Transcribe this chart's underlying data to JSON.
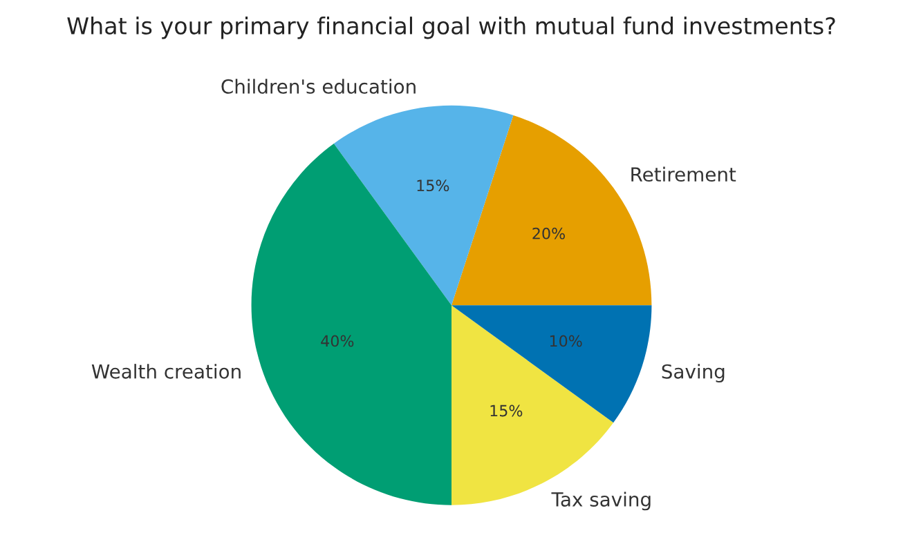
{
  "chart_data": {
    "type": "pie",
    "title": "What is your primary financial goal with mutual fund investments?",
    "categories": [
      "Retirement",
      "Children's education",
      "Wealth creation",
      "Tax saving",
      "Saving"
    ],
    "values": [
      20,
      15,
      40,
      15,
      10
    ],
    "value_labels": [
      "20%",
      "15%",
      "40%",
      "15%",
      "10%"
    ],
    "colors": [
      "#e69f00",
      "#56b4e9",
      "#009e73",
      "#f0e442",
      "#0072b2"
    ]
  }
}
